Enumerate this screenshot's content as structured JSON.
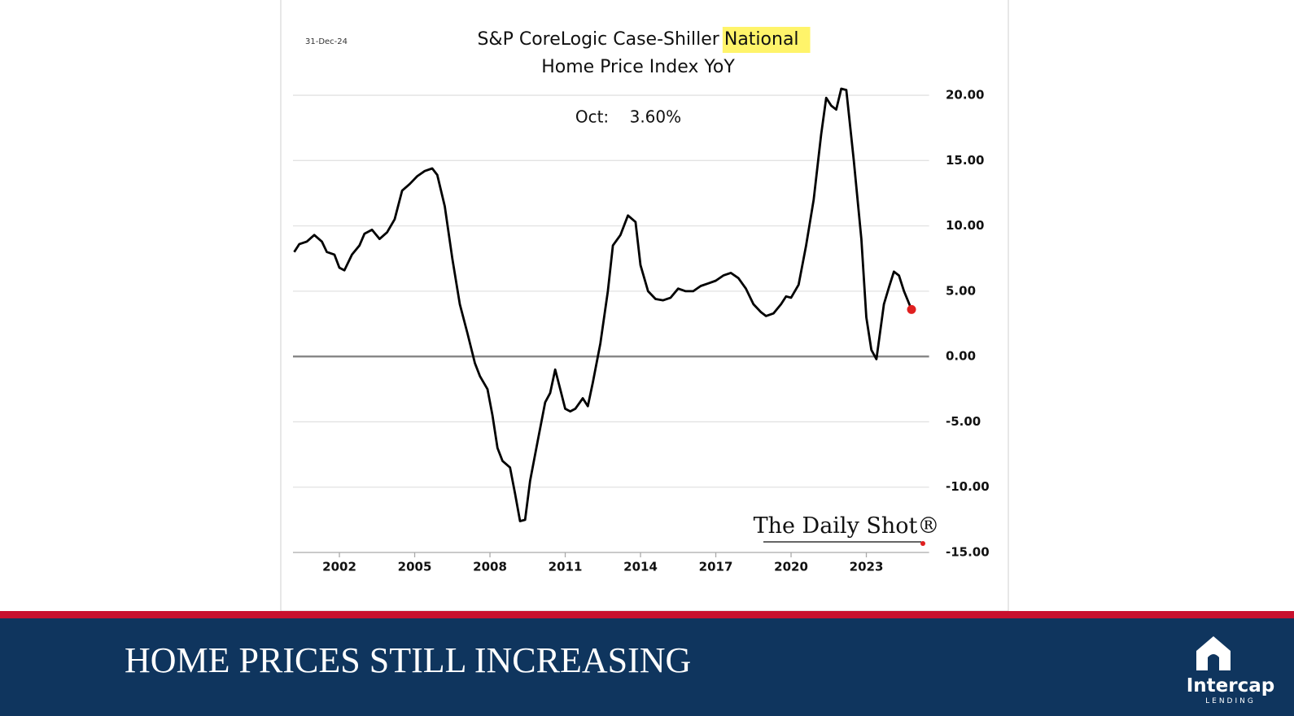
{
  "slide": {
    "heading": "HOME PRICES STILL INCREASING",
    "logo": {
      "name": "Intercap",
      "tagline": "LENDING"
    }
  },
  "chart_data": {
    "type": "line",
    "title": {
      "line1": "S&P CoreLogic Case-Shiller",
      "highlight": "National",
      "line2": "Home Price Index YoY"
    },
    "date": "31-Dec-24",
    "annotation": "Oct:    3.60%",
    "source": "The Daily Shot®",
    "color": "#000000",
    "marker_color": "#e02020",
    "x": [
      2000.2,
      2000.4,
      2000.7,
      2001.0,
      2001.3,
      2001.5,
      2001.8,
      2002.0,
      2002.2,
      2002.5,
      2002.8,
      2003.0,
      2003.3,
      2003.6,
      2003.9,
      2004.2,
      2004.5,
      2004.8,
      2005.1,
      2005.4,
      2005.7,
      2005.9,
      2006.2,
      2006.5,
      2006.8,
      2007.1,
      2007.4,
      2007.6,
      2007.9,
      2008.1,
      2008.3,
      2008.5,
      2008.8,
      2009.0,
      2009.2,
      2009.4,
      2009.6,
      2009.9,
      2010.2,
      2010.4,
      2010.6,
      2010.8,
      2011.0,
      2011.2,
      2011.4,
      2011.7,
      2011.9,
      2012.1,
      2012.4,
      2012.7,
      2012.9,
      2013.2,
      2013.5,
      2013.8,
      2014.0,
      2014.3,
      2014.6,
      2014.9,
      2015.2,
      2015.5,
      2015.8,
      2016.1,
      2016.4,
      2016.7,
      2017.0,
      2017.3,
      2017.6,
      2017.9,
      2018.2,
      2018.5,
      2018.8,
      2019.0,
      2019.3,
      2019.6,
      2019.8,
      2020.0,
      2020.3,
      2020.6,
      2020.9,
      2021.2,
      2021.4,
      2021.6,
      2021.8,
      2022.0,
      2022.2,
      2022.5,
      2022.8,
      2023.0,
      2023.2,
      2023.4,
      2023.7,
      2023.9,
      2024.1,
      2024.3,
      2024.5,
      2024.8
    ],
    "values": [
      8.0,
      8.6,
      8.8,
      9.3,
      8.8,
      8.0,
      7.8,
      6.8,
      6.6,
      7.8,
      8.5,
      9.4,
      9.7,
      9.0,
      9.5,
      10.5,
      12.7,
      13.2,
      13.8,
      14.2,
      14.4,
      13.9,
      11.5,
      7.5,
      4.0,
      1.8,
      -0.5,
      -1.5,
      -2.5,
      -4.5,
      -7.0,
      -8.0,
      -8.5,
      -10.5,
      -12.6,
      -12.5,
      -9.5,
      -6.5,
      -3.5,
      -2.8,
      -1.0,
      -2.5,
      -4.0,
      -4.2,
      -4.0,
      -3.2,
      -3.8,
      -2.0,
      1.0,
      5.0,
      8.5,
      9.3,
      10.8,
      10.3,
      7.0,
      5.0,
      4.4,
      4.3,
      4.5,
      5.2,
      5.0,
      5.0,
      5.4,
      5.6,
      5.8,
      6.2,
      6.4,
      6.0,
      5.2,
      4.0,
      3.4,
      3.1,
      3.3,
      4.0,
      4.6,
      4.5,
      5.5,
      8.5,
      12.0,
      17.0,
      19.8,
      19.2,
      18.9,
      20.5,
      20.4,
      15.0,
      9.0,
      3.0,
      0.5,
      -0.2,
      4.0,
      5.3,
      6.5,
      6.2,
      5.0,
      3.6
    ],
    "xlim": [
      2000.15,
      2025.5
    ],
    "xticks": [
      2002,
      2005,
      2008,
      2011,
      2014,
      2017,
      2020,
      2023
    ],
    "ylim": [
      -15,
      21
    ],
    "yticks": [
      {
        "value": -15,
        "label": "-15.00"
      },
      {
        "value": -10,
        "label": "-10.00"
      },
      {
        "value": -5,
        "label": "-5.00"
      },
      {
        "value": 0,
        "label": "0.00"
      },
      {
        "value": 5,
        "label": "5.00"
      },
      {
        "value": 10,
        "label": "10.00"
      },
      {
        "value": 15,
        "label": "15.00"
      },
      {
        "value": 20,
        "label": "20.00"
      }
    ],
    "grid": true
  }
}
